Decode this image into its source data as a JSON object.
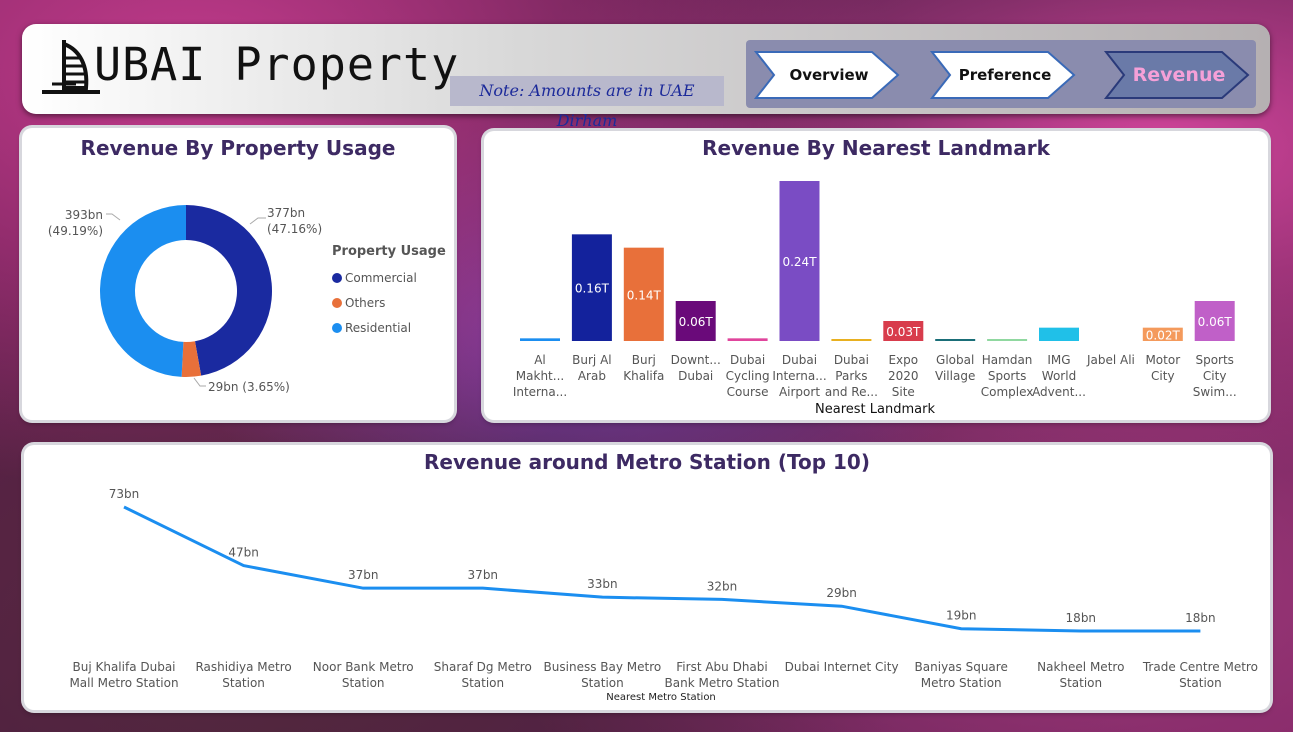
{
  "header": {
    "title": "UBAI Property",
    "note": "Note: Amounts are in UAE Dirham",
    "nav": [
      {
        "label": "Overview",
        "active": false
      },
      {
        "label": "Preference",
        "active": false
      },
      {
        "label": "Revenue",
        "active": true
      }
    ]
  },
  "usage_card": {
    "title": "Revenue By Property Usage",
    "legend_title": "Property Usage",
    "legend": [
      {
        "label": "Commercial",
        "color": "#1a2aa0"
      },
      {
        "label": "Others",
        "color": "#e8703a"
      },
      {
        "label": "Residential",
        "color": "#1b8ef0"
      }
    ],
    "labels": {
      "commercial": [
        "377bn",
        "(47.16%)"
      ],
      "residential": [
        "393bn",
        "(49.19%)"
      ],
      "others": "29bn (3.65%)"
    }
  },
  "landmark_card": {
    "title": "Revenue By Nearest Landmark",
    "xlabel": "Nearest Landmark"
  },
  "metro_card": {
    "title": "Revenue around Metro Station (Top 10)",
    "xlabel": "Nearest Metro Station"
  },
  "chart_data": [
    {
      "type": "pie",
      "title": "Revenue By Property Usage",
      "categories": [
        "Commercial",
        "Others",
        "Residential"
      ],
      "values": [
        377,
        29,
        393
      ],
      "percent": [
        47.16,
        3.65,
        49.19
      ],
      "unit": "bn",
      "colors": [
        "#1a2aa0",
        "#e8703a",
        "#1b8ef0"
      ]
    },
    {
      "type": "bar",
      "title": "Revenue By Nearest Landmark",
      "xlabel": "Nearest Landmark",
      "categories": [
        [
          "Al",
          "Makht...",
          "Interna..."
        ],
        [
          "Burj Al",
          "Arab"
        ],
        [
          "Burj",
          "Khalifa"
        ],
        [
          "Downt...",
          "Dubai"
        ],
        [
          "Dubai",
          "Cycling",
          "Course"
        ],
        [
          "Dubai",
          "Interna...",
          "Airport"
        ],
        [
          "Dubai",
          "Parks",
          "and Re..."
        ],
        [
          "Expo",
          "2020",
          "Site"
        ],
        [
          "Global",
          "Village"
        ],
        [
          "Hamdan",
          "Sports",
          "Complex"
        ],
        [
          "IMG",
          "World",
          "Advent..."
        ],
        [
          "Jabel Ali"
        ],
        [
          "Motor",
          "City"
        ],
        [
          "Sports",
          "City",
          "Swim..."
        ]
      ],
      "values": [
        0.004,
        0.16,
        0.14,
        0.06,
        0.004,
        0.24,
        0.003,
        0.03,
        0.003,
        0.002,
        0.02,
        0,
        0.02,
        0.06
      ],
      "data_labels": [
        "",
        "0.16T",
        "0.14T",
        "0.06T",
        "",
        "0.24T",
        "",
        "0.03T",
        "",
        "",
        "",
        "",
        "0.02T",
        "0.06T"
      ],
      "colors": [
        "#1b8ef0",
        "#13229c",
        "#e8703a",
        "#6a0a7a",
        "#e0459c",
        "#7a4cc4",
        "#e8b020",
        "#d83c4c",
        "#1a6e78",
        "#90d8a0",
        "#20c0e8",
        "#888888",
        "#f49a5c",
        "#c060c8"
      ],
      "ylim": [
        0,
        0.24
      ]
    },
    {
      "type": "line",
      "title": "Revenue around Metro Station (Top 10)",
      "xlabel": "Nearest Metro Station",
      "categories": [
        [
          "Buj Khalifa Dubai",
          "Mall Metro Station"
        ],
        [
          "Rashidiya Metro",
          "Station"
        ],
        [
          "Noor Bank Metro",
          "Station"
        ],
        [
          "Sharaf Dg Metro",
          "Station"
        ],
        [
          "Business Bay Metro",
          "Station"
        ],
        [
          "First Abu Dhabi",
          "Bank Metro Station"
        ],
        [
          "Dubai Internet City"
        ],
        [
          "Baniyas Square",
          "Metro Station"
        ],
        [
          "Nakheel Metro",
          "Station"
        ],
        [
          "Trade Centre Metro",
          "Station"
        ]
      ],
      "values": [
        73,
        47,
        37,
        37,
        33,
        32,
        29,
        19,
        18,
        18
      ],
      "data_labels": [
        "73bn",
        "47bn",
        "37bn",
        "37bn",
        "33bn",
        "32bn",
        "29bn",
        "19bn",
        "18bn",
        "18bn"
      ],
      "unit": "bn",
      "color": "#1b8ef0"
    }
  ]
}
